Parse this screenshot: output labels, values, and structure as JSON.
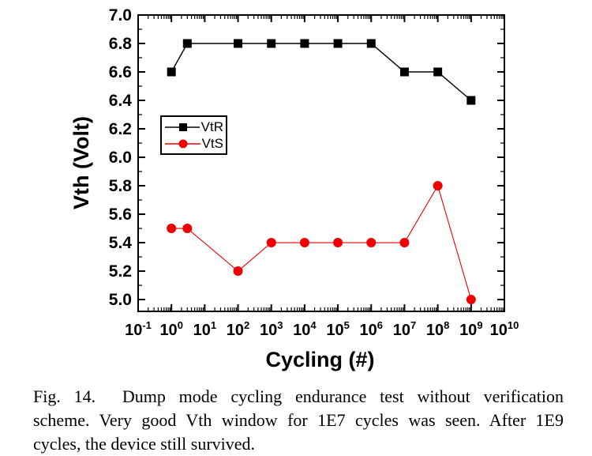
{
  "figure": {
    "caption": {
      "lines": [
        "Fig. 14.  Dump mode cycling endurance test without verification",
        "scheme. Very good Vth window for 1E7 cycles was seen. After 1E9",
        "cycles, the device still survived."
      ]
    }
  },
  "chart_data": {
    "type": "line",
    "title": "",
    "xlabel": "Cycling (#)",
    "ylabel": "Vth (Volt)",
    "x_scale": "log",
    "x_range_exponents": [
      -1,
      10
    ],
    "x_tick_exponents": [
      -1,
      0,
      1,
      2,
      3,
      4,
      5,
      6,
      7,
      8,
      9,
      10
    ],
    "y_range": [
      4.917,
      7.0
    ],
    "y_ticks": [
      5.0,
      5.2,
      5.4,
      5.6,
      5.8,
      6.0,
      6.2,
      6.4,
      6.6,
      6.8,
      7.0
    ],
    "y_minor_tick_step": 0.1,
    "grid": false,
    "background_color": "#ffffff",
    "axis_color": "#000000",
    "legend": {
      "position": "inside-left",
      "entries": [
        {
          "label": "VtR",
          "color": "#000000",
          "marker": "square"
        },
        {
          "label": "VtS",
          "color": "#ee0000",
          "marker": "circle"
        }
      ]
    },
    "series": [
      {
        "name": "VtR",
        "color": "#000000",
        "marker": "square",
        "x": [
          1,
          3,
          100,
          1000,
          10000,
          100000,
          1000000,
          10000000,
          100000000,
          1000000000
        ],
        "y": [
          6.6,
          6.8,
          6.8,
          6.8,
          6.8,
          6.8,
          6.8,
          6.6,
          6.6,
          6.4
        ]
      },
      {
        "name": "VtS",
        "color": "#ee0000",
        "marker": "circle",
        "x": [
          1,
          3,
          100,
          1000,
          10000,
          100000,
          1000000,
          10000000,
          100000000,
          1000000000
        ],
        "y": [
          5.5,
          5.5,
          5.2,
          5.4,
          5.4,
          5.4,
          5.4,
          5.4,
          5.8,
          5.0
        ]
      }
    ]
  }
}
